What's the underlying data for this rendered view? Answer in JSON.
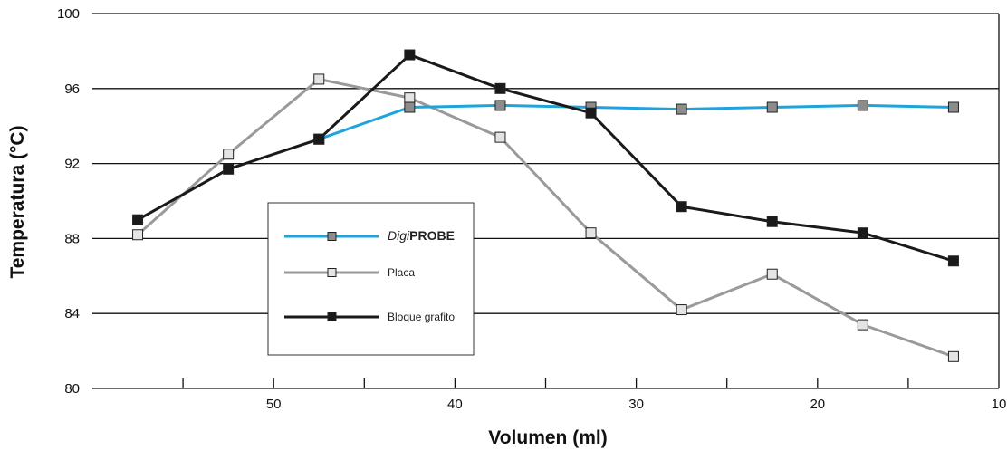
{
  "chart_data": {
    "type": "line",
    "xlabel": "Volumen (ml)",
    "ylabel": "Temperatura (°C)",
    "xlim": [
      60,
      10
    ],
    "ylim": [
      80,
      100
    ],
    "x_ticks": [
      50,
      40,
      30,
      20,
      10
    ],
    "y_ticks": [
      80,
      84,
      88,
      92,
      96,
      100
    ],
    "grid": "horizontal",
    "legend_position": "center-left",
    "series": [
      {
        "name_prefix": "Digi",
        "name_suffix": "PROBE",
        "color": "#1fa3dc",
        "marker": "square",
        "marker_fill": "#8c8c8c",
        "x": [
          47.5,
          42.5,
          37.5,
          32.5,
          27.5,
          22.5,
          17.5,
          12.5
        ],
        "y": [
          93.3,
          95.0,
          95.1,
          95.0,
          94.9,
          95.0,
          95.1,
          95.0
        ]
      },
      {
        "name": "Placa",
        "color": "#9a9a9a",
        "marker": "square",
        "marker_fill": "#e4e4e4",
        "x": [
          57.5,
          52.5,
          47.5,
          42.5,
          37.5,
          32.5,
          27.5,
          22.5,
          17.5,
          12.5
        ],
        "y": [
          88.2,
          92.5,
          96.5,
          95.5,
          93.4,
          88.3,
          84.2,
          86.1,
          83.4,
          81.7
        ]
      },
      {
        "name": "Bloque grafito",
        "color": "#1a1a1a",
        "marker": "square",
        "marker_fill": "#1a1a1a",
        "x": [
          57.5,
          52.5,
          47.5,
          42.5,
          37.5,
          32.5,
          27.5,
          22.5,
          17.5,
          12.5
        ],
        "y": [
          89.0,
          91.7,
          93.3,
          97.8,
          96.0,
          94.7,
          89.7,
          88.9,
          88.3,
          86.8
        ]
      }
    ]
  }
}
